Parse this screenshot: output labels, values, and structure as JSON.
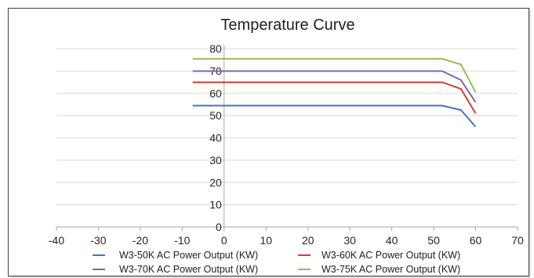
{
  "chart_data": {
    "type": "line",
    "title": "Temperature Curve",
    "xlabel": "",
    "ylabel": "",
    "xlim": [
      -40,
      70
    ],
    "ylim": [
      0,
      85
    ],
    "x_ticks": [
      -40,
      -30,
      -20,
      -10,
      0,
      10,
      20,
      30,
      40,
      50,
      60,
      70
    ],
    "y_ticks": [
      0,
      10,
      20,
      30,
      40,
      50,
      60,
      70,
      80
    ],
    "grid": "horizontal",
    "legend_placement": "bottom",
    "series": [
      {
        "name": "W3-50K AC Power Output (KW)",
        "color": "#4472C4",
        "x": [
          -7.5,
          52,
          56.5,
          60
        ],
        "y": [
          54.5,
          54.5,
          52.5,
          45
        ]
      },
      {
        "name": "W3-60K AC Power Output (KW)",
        "color": "#D83B34",
        "x": [
          -7.5,
          52,
          56.5,
          60
        ],
        "y": [
          65,
          65,
          62,
          51
        ]
      },
      {
        "name": "W3-70K AC Power Output (KW)",
        "color": "#8064A2",
        "x": [
          -7.5,
          52,
          56.5,
          60
        ],
        "y": [
          70,
          70,
          66,
          56
        ]
      },
      {
        "name": "W3-75K AC Power Output (KW)",
        "color": "#9BBB59",
        "x": [
          -7.5,
          52,
          56.5,
          60
        ],
        "y": [
          75.5,
          75.5,
          73,
          60.5
        ]
      }
    ]
  }
}
